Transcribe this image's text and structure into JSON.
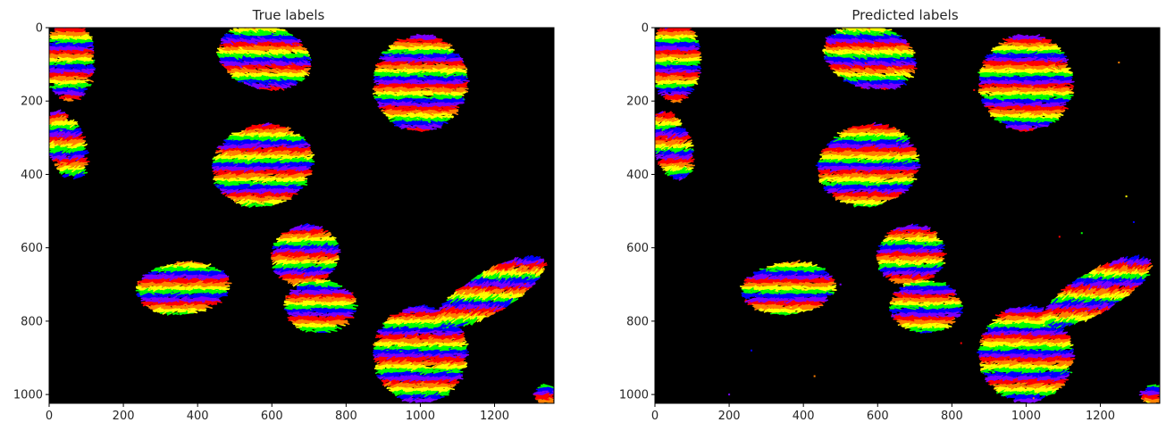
{
  "chart_data": [
    {
      "type": "heatmap",
      "title": "True labels",
      "xlabel": "",
      "ylabel": "",
      "xlim": [
        0,
        1360
      ],
      "ylim": [
        1024,
        0
      ],
      "xticks": [
        0,
        200,
        400,
        600,
        800,
        1000,
        1200
      ],
      "yticks": [
        0,
        200,
        400,
        600,
        800,
        1000
      ],
      "background": "#000000",
      "colormap": "prism",
      "clusters": [
        {
          "name": "top-left",
          "cx": 55,
          "cy": 90,
          "rx": 60,
          "ry": 110,
          "angle": 0
        },
        {
          "name": "left-edge",
          "cx": 45,
          "cy": 320,
          "rx": 45,
          "ry": 95,
          "angle": -20
        },
        {
          "name": "top-center",
          "cx": 580,
          "cy": 80,
          "rx": 120,
          "ry": 85,
          "angle": 15
        },
        {
          "name": "top-right",
          "cx": 1000,
          "cy": 150,
          "rx": 120,
          "ry": 130,
          "angle": 0
        },
        {
          "name": "center",
          "cx": 575,
          "cy": 375,
          "rx": 130,
          "ry": 110,
          "angle": -10
        },
        {
          "name": "mid-left",
          "cx": 360,
          "cy": 710,
          "rx": 120,
          "ry": 70,
          "angle": -5
        },
        {
          "name": "mid-center-a",
          "cx": 690,
          "cy": 620,
          "rx": 85,
          "ry": 80,
          "angle": -15
        },
        {
          "name": "mid-center-b",
          "cx": 730,
          "cy": 760,
          "rx": 90,
          "ry": 70,
          "angle": 0
        },
        {
          "name": "bottom-right",
          "cx": 1000,
          "cy": 890,
          "rx": 120,
          "ry": 130,
          "angle": -10
        },
        {
          "name": "right-arm",
          "cx": 1190,
          "cy": 720,
          "rx": 160,
          "ry": 55,
          "angle": -30
        },
        {
          "name": "corner",
          "cx": 1340,
          "cy": 1000,
          "rx": 25,
          "ry": 25,
          "angle": 0
        }
      ]
    },
    {
      "type": "heatmap",
      "title": "Predicted labels",
      "xlabel": "",
      "ylabel": "",
      "xlim": [
        0,
        1360
      ],
      "ylim": [
        1024,
        0
      ],
      "xticks": [
        0,
        200,
        400,
        600,
        800,
        1000,
        1200
      ],
      "yticks": [
        0,
        200,
        400,
        600,
        800,
        1000
      ],
      "background": "#000000",
      "colormap": "prism",
      "clusters": [
        {
          "name": "top-left",
          "cx": 55,
          "cy": 90,
          "rx": 60,
          "ry": 110,
          "angle": 0
        },
        {
          "name": "left-edge",
          "cx": 45,
          "cy": 320,
          "rx": 45,
          "ry": 95,
          "angle": -20
        },
        {
          "name": "top-center",
          "cx": 580,
          "cy": 80,
          "rx": 120,
          "ry": 85,
          "angle": 15
        },
        {
          "name": "top-right",
          "cx": 1000,
          "cy": 150,
          "rx": 120,
          "ry": 130,
          "angle": 0
        },
        {
          "name": "center",
          "cx": 575,
          "cy": 375,
          "rx": 130,
          "ry": 110,
          "angle": -10
        },
        {
          "name": "mid-left",
          "cx": 360,
          "cy": 710,
          "rx": 120,
          "ry": 70,
          "angle": -5
        },
        {
          "name": "mid-center-a",
          "cx": 690,
          "cy": 620,
          "rx": 85,
          "ry": 80,
          "angle": -15
        },
        {
          "name": "mid-center-b",
          "cx": 730,
          "cy": 760,
          "rx": 90,
          "ry": 70,
          "angle": 0
        },
        {
          "name": "bottom-right",
          "cx": 1000,
          "cy": 890,
          "rx": 120,
          "ry": 130,
          "angle": -10
        },
        {
          "name": "right-arm",
          "cx": 1190,
          "cy": 720,
          "rx": 160,
          "ry": 55,
          "angle": -30
        },
        {
          "name": "corner",
          "cx": 1340,
          "cy": 1000,
          "rx": 25,
          "ry": 25,
          "angle": 0
        }
      ],
      "specks": [
        [
          860,
          170
        ],
        [
          1250,
          95
        ],
        [
          935,
          920
        ],
        [
          1180,
          1040
        ],
        [
          260,
          880
        ],
        [
          200,
          1000
        ],
        [
          1090,
          570
        ],
        [
          430,
          950
        ],
        [
          1270,
          460
        ],
        [
          1150,
          560
        ],
        [
          1290,
          530
        ],
        [
          500,
          700
        ],
        [
          825,
          860
        ],
        [
          1020,
          1010
        ],
        [
          980,
          1050
        ]
      ]
    }
  ]
}
